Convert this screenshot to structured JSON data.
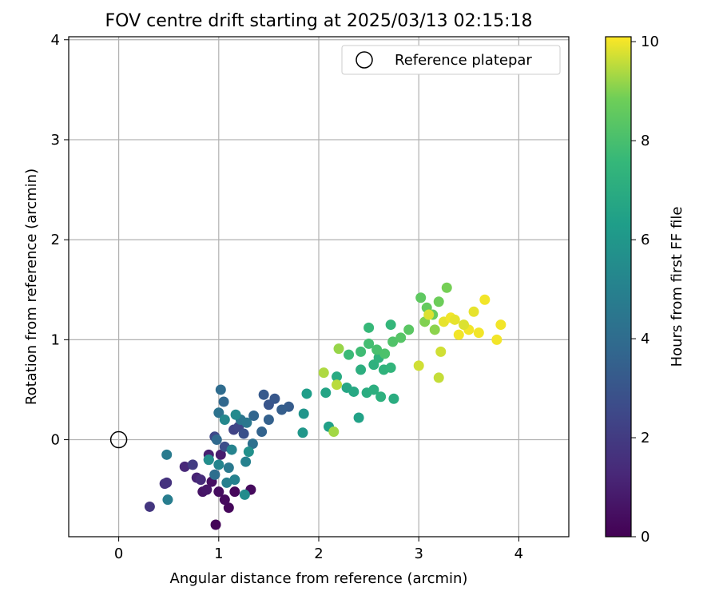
{
  "chart_data": {
    "type": "scatter",
    "title": "FOV centre drift starting at 2025/03/13 02:15:18",
    "xlabel": "Angular distance from reference (arcmin)",
    "ylabel": "Rotation from reference (arcmin)",
    "colorbar_label": "Hours from first FF file",
    "xlim": [
      -0.5,
      4.5
    ],
    "ylim": [
      -0.97,
      4.03
    ],
    "xticks": [
      0,
      1,
      2,
      3,
      4
    ],
    "yticks": [
      0,
      1,
      2,
      3,
      4
    ],
    "cbar_lim": [
      0,
      10.1
    ],
    "cbar_ticks": [
      0,
      2,
      4,
      6,
      8,
      10
    ],
    "colormap": "viridis",
    "grid": true,
    "legend": {
      "label": "Reference platepar",
      "placement": "top-right"
    },
    "reference_point": {
      "x": 0,
      "y": 0
    },
    "points": [
      {
        "x": 0.97,
        "y": -0.85,
        "t": 0.1
      },
      {
        "x": 1.1,
        "y": -0.68,
        "t": 0.2
      },
      {
        "x": 1.06,
        "y": -0.6,
        "t": 0.3
      },
      {
        "x": 1.16,
        "y": -0.52,
        "t": 0.2
      },
      {
        "x": 1.32,
        "y": -0.5,
        "t": 0.3
      },
      {
        "x": 1.0,
        "y": -0.52,
        "t": 0.4
      },
      {
        "x": 0.93,
        "y": -0.42,
        "t": 0.5
      },
      {
        "x": 0.84,
        "y": -0.52,
        "t": 0.6
      },
      {
        "x": 0.88,
        "y": -0.5,
        "t": 0.7
      },
      {
        "x": 0.96,
        "y": -0.35,
        "t": 0.8
      },
      {
        "x": 1.02,
        "y": -0.15,
        "t": 0.9
      },
      {
        "x": 0.9,
        "y": -0.15,
        "t": 1.0
      },
      {
        "x": 0.78,
        "y": -0.38,
        "t": 1.1
      },
      {
        "x": 0.66,
        "y": -0.27,
        "t": 1.3
      },
      {
        "x": 0.82,
        "y": -0.4,
        "t": 1.4
      },
      {
        "x": 0.46,
        "y": -0.44,
        "t": 1.6
      },
      {
        "x": 0.48,
        "y": -0.43,
        "t": 1.7
      },
      {
        "x": 0.31,
        "y": -0.67,
        "t": 1.8
      },
      {
        "x": 0.74,
        "y": -0.25,
        "t": 2.0
      },
      {
        "x": 0.9,
        "y": -0.2,
        "t": 2.2
      },
      {
        "x": 1.15,
        "y": 0.1,
        "t": 2.3
      },
      {
        "x": 1.2,
        "y": 0.13,
        "t": 2.4
      },
      {
        "x": 0.96,
        "y": 0.03,
        "t": 2.5
      },
      {
        "x": 1.06,
        "y": -0.07,
        "t": 2.7
      },
      {
        "x": 1.25,
        "y": 0.06,
        "t": 2.8
      },
      {
        "x": 1.5,
        "y": 0.35,
        "t": 3.0
      },
      {
        "x": 1.56,
        "y": 0.41,
        "t": 3.1
      },
      {
        "x": 1.45,
        "y": 0.45,
        "t": 3.2
      },
      {
        "x": 1.7,
        "y": 0.33,
        "t": 3.3
      },
      {
        "x": 1.63,
        "y": 0.3,
        "t": 3.4
      },
      {
        "x": 1.5,
        "y": 0.2,
        "t": 3.5
      },
      {
        "x": 1.43,
        "y": 0.08,
        "t": 3.6
      },
      {
        "x": 1.35,
        "y": 0.24,
        "t": 3.7
      },
      {
        "x": 1.05,
        "y": 0.38,
        "t": 3.8
      },
      {
        "x": 0.98,
        "y": 0.0,
        "t": 3.9
      },
      {
        "x": 1.02,
        "y": 0.5,
        "t": 4.0
      },
      {
        "x": 0.96,
        "y": -0.35,
        "t": 4.1
      },
      {
        "x": 1.34,
        "y": -0.04,
        "t": 4.2
      },
      {
        "x": 1.0,
        "y": 0.27,
        "t": 4.3
      },
      {
        "x": 1.22,
        "y": 0.2,
        "t": 4.4
      },
      {
        "x": 1.28,
        "y": 0.17,
        "t": 4.5
      },
      {
        "x": 1.1,
        "y": -0.28,
        "t": 4.6
      },
      {
        "x": 0.48,
        "y": -0.15,
        "t": 4.7
      },
      {
        "x": 0.49,
        "y": -0.6,
        "t": 4.8
      },
      {
        "x": 1.08,
        "y": -0.43,
        "t": 4.9
      },
      {
        "x": 1.16,
        "y": -0.4,
        "t": 5.0
      },
      {
        "x": 1.27,
        "y": -0.22,
        "t": 5.0
      },
      {
        "x": 1.13,
        "y": -0.1,
        "t": 5.1
      },
      {
        "x": 1.0,
        "y": -0.25,
        "t": 5.2
      },
      {
        "x": 1.06,
        "y": 0.2,
        "t": 5.3
      },
      {
        "x": 1.17,
        "y": 0.25,
        "t": 5.4
      },
      {
        "x": 1.26,
        "y": -0.55,
        "t": 5.5
      },
      {
        "x": 0.9,
        "y": -0.2,
        "t": 5.6
      },
      {
        "x": 1.3,
        "y": -0.12,
        "t": 5.7
      },
      {
        "x": 1.85,
        "y": 0.26,
        "t": 5.9
      },
      {
        "x": 1.84,
        "y": 0.07,
        "t": 6.0
      },
      {
        "x": 1.88,
        "y": 0.46,
        "t": 6.3
      },
      {
        "x": 2.1,
        "y": 0.13,
        "t": 6.4
      },
      {
        "x": 2.4,
        "y": 0.22,
        "t": 6.5
      },
      {
        "x": 2.07,
        "y": 0.47,
        "t": 6.6
      },
      {
        "x": 2.28,
        "y": 0.52,
        "t": 6.7
      },
      {
        "x": 2.35,
        "y": 0.48,
        "t": 6.8
      },
      {
        "x": 2.18,
        "y": 0.63,
        "t": 6.9
      },
      {
        "x": 2.48,
        "y": 0.47,
        "t": 7.0
      },
      {
        "x": 2.55,
        "y": 0.5,
        "t": 7.1
      },
      {
        "x": 2.62,
        "y": 0.43,
        "t": 7.2
      },
      {
        "x": 2.75,
        "y": 0.41,
        "t": 7.0
      },
      {
        "x": 2.42,
        "y": 0.7,
        "t": 7.1
      },
      {
        "x": 2.55,
        "y": 0.75,
        "t": 7.2
      },
      {
        "x": 2.65,
        "y": 0.7,
        "t": 7.3
      },
      {
        "x": 2.72,
        "y": 0.72,
        "t": 7.4
      },
      {
        "x": 2.6,
        "y": 0.82,
        "t": 7.3
      },
      {
        "x": 2.72,
        "y": 1.15,
        "t": 7.5
      },
      {
        "x": 2.5,
        "y": 1.12,
        "t": 7.6
      },
      {
        "x": 2.3,
        "y": 0.85,
        "t": 7.7
      },
      {
        "x": 2.42,
        "y": 0.88,
        "t": 7.8
      },
      {
        "x": 2.5,
        "y": 0.96,
        "t": 7.9
      },
      {
        "x": 2.58,
        "y": 0.9,
        "t": 8.0
      },
      {
        "x": 2.66,
        "y": 0.86,
        "t": 8.1
      },
      {
        "x": 2.74,
        "y": 0.98,
        "t": 8.2
      },
      {
        "x": 2.82,
        "y": 1.02,
        "t": 8.3
      },
      {
        "x": 2.9,
        "y": 1.1,
        "t": 8.4
      },
      {
        "x": 3.02,
        "y": 1.42,
        "t": 8.5
      },
      {
        "x": 3.08,
        "y": 1.32,
        "t": 8.6
      },
      {
        "x": 3.14,
        "y": 1.25,
        "t": 8.7
      },
      {
        "x": 3.2,
        "y": 1.38,
        "t": 8.8
      },
      {
        "x": 3.28,
        "y": 1.52,
        "t": 8.9
      },
      {
        "x": 3.06,
        "y": 1.18,
        "t": 9.0
      },
      {
        "x": 3.16,
        "y": 1.1,
        "t": 9.1
      },
      {
        "x": 2.2,
        "y": 0.91,
        "t": 9.2
      },
      {
        "x": 2.15,
        "y": 0.08,
        "t": 9.3
      },
      {
        "x": 2.05,
        "y": 0.67,
        "t": 9.4
      },
      {
        "x": 2.18,
        "y": 0.55,
        "t": 9.5
      },
      {
        "x": 3.2,
        "y": 0.62,
        "t": 9.6
      },
      {
        "x": 3.0,
        "y": 0.74,
        "t": 9.7
      },
      {
        "x": 3.1,
        "y": 1.25,
        "t": 9.8
      },
      {
        "x": 3.25,
        "y": 1.18,
        "t": 9.9
      },
      {
        "x": 3.32,
        "y": 1.22,
        "t": 10.0
      },
      {
        "x": 3.4,
        "y": 1.05,
        "t": 10.0
      },
      {
        "x": 3.5,
        "y": 1.1,
        "t": 10.0
      },
      {
        "x": 3.6,
        "y": 1.07,
        "t": 10.0
      },
      {
        "x": 3.66,
        "y": 1.4,
        "t": 10.0
      },
      {
        "x": 3.78,
        "y": 1.0,
        "t": 10.0
      },
      {
        "x": 3.82,
        "y": 1.15,
        "t": 10.0
      },
      {
        "x": 3.36,
        "y": 1.2,
        "t": 9.9
      },
      {
        "x": 3.45,
        "y": 1.15,
        "t": 9.8
      },
      {
        "x": 3.55,
        "y": 1.28,
        "t": 9.9
      },
      {
        "x": 3.22,
        "y": 0.88,
        "t": 9.7
      }
    ]
  }
}
